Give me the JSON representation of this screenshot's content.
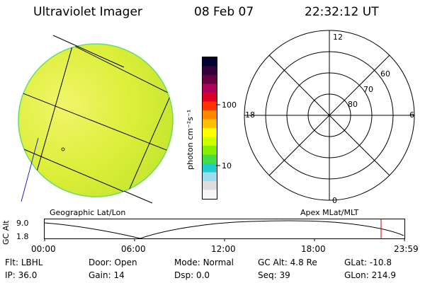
{
  "header": {
    "instrument": "Ultraviolet Imager",
    "date": "08 Feb 07",
    "time": "22:32:12 UT"
  },
  "colorbar": {
    "unit_label": "photon cm⁻²s⁻¹",
    "ticks": [
      "100",
      "10"
    ],
    "colors": [
      "#000033",
      "#33003a",
      "#660044",
      "#b0005a",
      "#dd0022",
      "#ff3300",
      "#ff8800",
      "#ffc000",
      "#ffff00",
      "#ccff00",
      "#88ee00",
      "#44dd44",
      "#22cccc",
      "#99ddee",
      "#dddddd",
      "#f6f6f6"
    ]
  },
  "geo_panel": {
    "caption": "Geographic Lat/Lon",
    "disk_color": "#dcee38"
  },
  "polar_panel": {
    "caption": "Apex MLat/MLT",
    "hour_labels": {
      "top": "12",
      "left": "18",
      "right": "6",
      "bottom": "0"
    },
    "lat_labels": [
      "60",
      "70",
      "80"
    ]
  },
  "altitude_plot": {
    "y_label": "GC Alt",
    "y_ticks": [
      "9.0",
      "1.8"
    ],
    "x_ticks": [
      "00:00",
      "06:00",
      "12:00",
      "18:00",
      "23:59"
    ],
    "marker_color": "#cc0000"
  },
  "info": {
    "row1": [
      {
        "label": "Flt:",
        "value": "LBHL"
      },
      {
        "label": "Door:",
        "value": "Open"
      },
      {
        "label": "Mode:",
        "value": "Normal"
      },
      {
        "label": "GC Alt:",
        "value": "4.8 Re"
      },
      {
        "label": "GLat:",
        "value": "-10.8"
      }
    ],
    "row2": [
      {
        "label": "IP:",
        "value": "36.0"
      },
      {
        "label": "Gain:",
        "value": "14"
      },
      {
        "label": "Dsp:",
        "value": "0.0"
      },
      {
        "label": "Seq:",
        "value": "39"
      },
      {
        "label": "GLon:",
        "value": "214.9"
      }
    ]
  }
}
